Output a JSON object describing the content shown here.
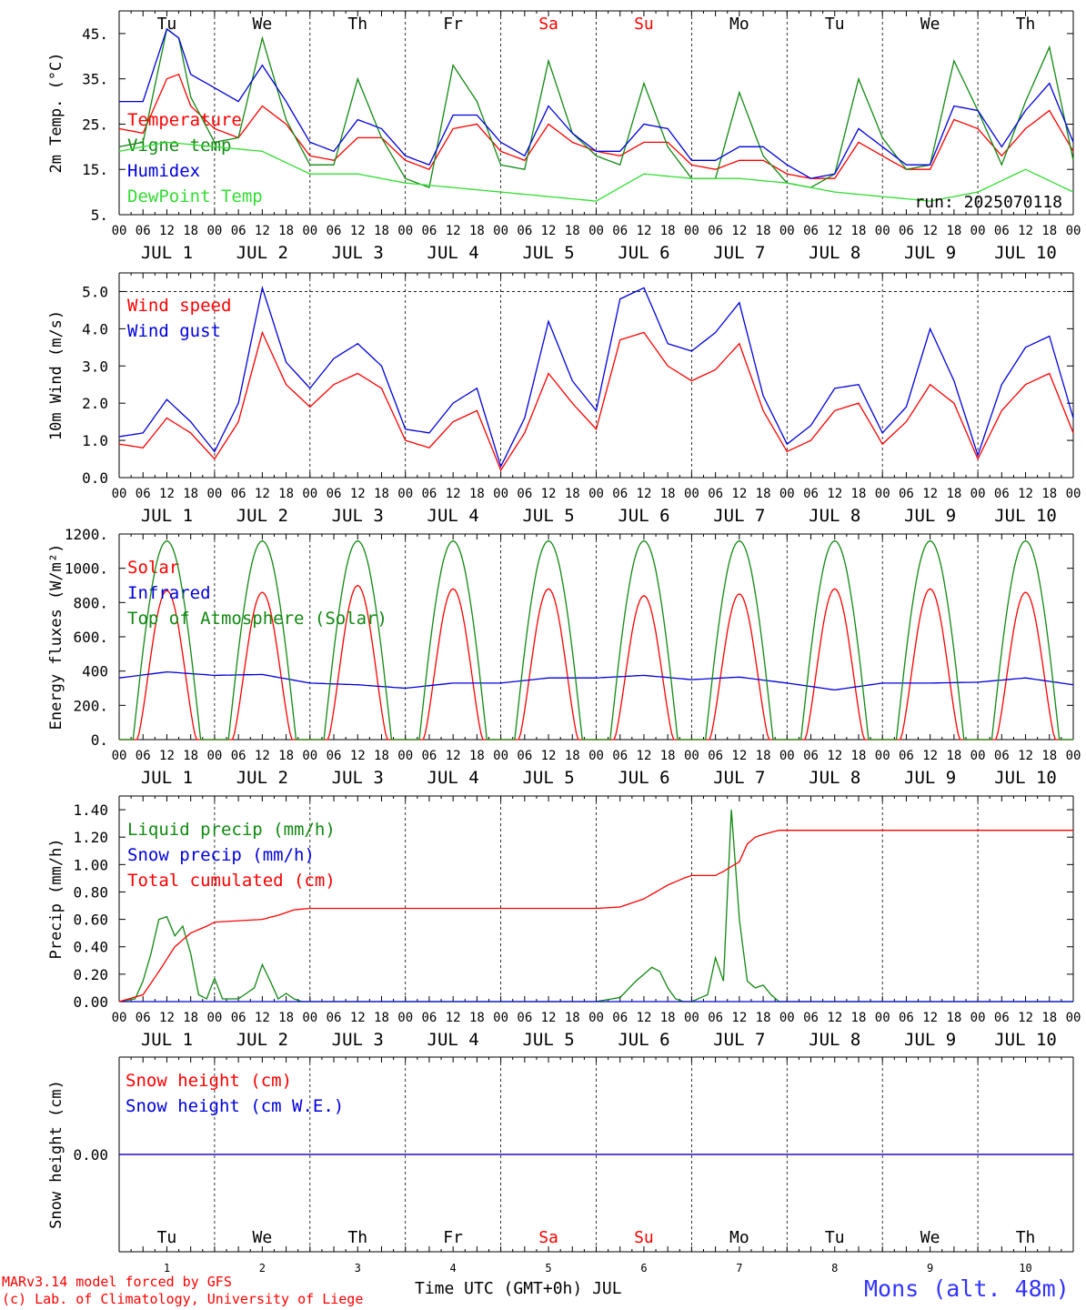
{
  "days": {
    "weekday_labels": [
      "Tu",
      "We",
      "Th",
      "Fr",
      "Sa",
      "Su",
      "Mo",
      "Tu",
      "We",
      "Th"
    ],
    "weekend_flags": [
      false,
      false,
      false,
      false,
      true,
      true,
      false,
      false,
      false,
      false
    ],
    "date_labels": [
      "JUL  1",
      "JUL  2",
      "JUL  3",
      "JUL  4",
      "JUL  5",
      "JUL  6",
      "JUL  7",
      "JUL  8",
      "JUL  9",
      "JUL 10"
    ],
    "day_numbers": [
      "1",
      "2",
      "3",
      "4",
      "5",
      "6",
      "7",
      "8",
      "9",
      "10"
    ],
    "hour_ticks": [
      "00",
      "06",
      "12",
      "18"
    ],
    "final_hour": "00"
  },
  "colors": {
    "weekday": "#000000",
    "weekend": "#ff0000",
    "red": "#ff0000",
    "blue": "#0000dd",
    "green": "#118811",
    "light_green": "#33dd33",
    "station": "#3333ff"
  },
  "footer": {
    "model_line": "MARv3.14 model forced by GFS",
    "copyright_line": "(c) Lab. of Climatology, University of Liege",
    "time_axis_label": "Time UTC (GMT+0h) JUL",
    "station_label": "Mons (alt. 48m)"
  },
  "chart_data": [
    {
      "type": "line",
      "ylabel": "2m Temp. (°C)",
      "ylim": [
        5,
        50
      ],
      "yticks": [
        5,
        15,
        25,
        35,
        45
      ],
      "ytick_labels": [
        "5.",
        "15.",
        "25.",
        "35.",
        "45."
      ],
      "x_units": "hours since 2025-07-01 00 UTC",
      "xlim": [
        0,
        240
      ],
      "run_label": "run: 2025070118",
      "series": [
        {
          "name": "Temperature",
          "color_key": "red",
          "x": [
            0,
            6,
            12,
            15,
            18,
            24,
            30,
            36,
            42,
            48,
            54,
            60,
            66,
            72,
            78,
            84,
            90,
            96,
            102,
            108,
            114,
            120,
            126,
            132,
            138,
            144,
            150,
            156,
            162,
            168,
            174,
            180,
            186,
            192,
            198,
            204,
            210,
            216,
            222,
            228,
            234,
            240
          ],
          "values": [
            24,
            23,
            35,
            36,
            29,
            24,
            22,
            29,
            25,
            18,
            17,
            22,
            22,
            17,
            15,
            24,
            25,
            19,
            17,
            25,
            21,
            19,
            18,
            21,
            21,
            16,
            15,
            17,
            17,
            14,
            13,
            13,
            21,
            18,
            15,
            15,
            26,
            24,
            18,
            24,
            28,
            19
          ]
        },
        {
          "name": "Vigne temp",
          "color_key": "green",
          "x": [
            0,
            6,
            12,
            15,
            18,
            24,
            30,
            36,
            42,
            48,
            54,
            60,
            66,
            72,
            78,
            84,
            90,
            96,
            102,
            108,
            114,
            120,
            126,
            132,
            138,
            144,
            150,
            156,
            162,
            168,
            174,
            180,
            186,
            192,
            198,
            204,
            210,
            216,
            222,
            228,
            234,
            240
          ],
          "values": [
            20,
            21,
            46,
            44,
            31,
            21,
            22,
            44,
            26,
            16,
            16,
            35,
            22,
            13,
            11,
            38,
            30,
            16,
            15,
            39,
            23,
            18,
            16,
            34,
            20,
            13,
            13,
            32,
            18,
            12,
            11,
            14,
            35,
            22,
            15,
            16,
            39,
            28,
            16,
            30,
            42,
            17
          ]
        },
        {
          "name": "Humidex",
          "color_key": "blue",
          "x": [
            0,
            6,
            12,
            15,
            18,
            24,
            30,
            36,
            42,
            48,
            54,
            60,
            66,
            72,
            78,
            84,
            90,
            96,
            102,
            108,
            114,
            120,
            126,
            132,
            138,
            144,
            150,
            156,
            162,
            168,
            174,
            180,
            186,
            192,
            198,
            204,
            210,
            216,
            222,
            228,
            234,
            240
          ],
          "values": [
            30,
            30,
            46,
            44,
            36,
            33,
            30,
            38,
            30,
            21,
            19,
            26,
            24,
            18,
            16,
            27,
            27,
            21,
            18,
            29,
            23,
            19,
            19,
            25,
            24,
            17,
            17,
            20,
            20,
            16,
            13,
            14,
            24,
            20,
            16,
            16,
            29,
            28,
            20,
            28,
            34,
            21
          ]
        },
        {
          "name": "DewPoint Temp",
          "color_key": "light_green",
          "x": [
            0,
            12,
            24,
            36,
            48,
            60,
            72,
            84,
            96,
            108,
            120,
            132,
            144,
            156,
            168,
            180,
            192,
            204,
            216,
            228,
            240
          ],
          "values": [
            19,
            21,
            20,
            19,
            14,
            14,
            12,
            11,
            10,
            9,
            8,
            14,
            13,
            13,
            12,
            10,
            9,
            8,
            10,
            15,
            10
          ]
        }
      ]
    },
    {
      "type": "line",
      "ylabel": "10m Wind (m/s)",
      "ylim": [
        0,
        5.5
      ],
      "yticks": [
        0,
        1,
        2,
        3,
        4,
        5
      ],
      "ytick_labels": [
        "0.0",
        "1.0",
        "2.0",
        "3.0",
        "4.0",
        "5.0"
      ],
      "reference_line": 5.0,
      "x_units": "hours since 2025-07-01 00 UTC",
      "xlim": [
        0,
        240
      ],
      "series": [
        {
          "name": "Wind speed",
          "color_key": "red",
          "x": [
            0,
            6,
            12,
            18,
            24,
            30,
            36,
            42,
            48,
            54,
            60,
            66,
            72,
            78,
            84,
            90,
            96,
            102,
            108,
            114,
            120,
            126,
            132,
            138,
            144,
            150,
            156,
            162,
            168,
            174,
            180,
            186,
            192,
            198,
            204,
            210,
            216,
            222,
            228,
            234,
            240
          ],
          "values": [
            0.9,
            0.8,
            1.6,
            1.2,
            0.5,
            1.5,
            3.9,
            2.5,
            1.9,
            2.5,
            2.8,
            2.4,
            1.0,
            0.8,
            1.5,
            1.8,
            0.2,
            1.2,
            2.8,
            2.0,
            1.3,
            3.7,
            3.9,
            3.0,
            2.6,
            2.9,
            3.6,
            1.8,
            0.7,
            1.0,
            1.8,
            2.0,
            0.9,
            1.5,
            2.5,
            2.0,
            0.5,
            1.8,
            2.5,
            2.8,
            1.2
          ]
        },
        {
          "name": "Wind gust",
          "color_key": "blue",
          "x": [
            0,
            6,
            12,
            18,
            24,
            30,
            36,
            42,
            48,
            54,
            60,
            66,
            72,
            78,
            84,
            90,
            96,
            102,
            108,
            114,
            120,
            126,
            132,
            138,
            144,
            150,
            156,
            162,
            168,
            174,
            180,
            186,
            192,
            198,
            204,
            210,
            216,
            222,
            228,
            234,
            240
          ],
          "values": [
            1.1,
            1.2,
            2.1,
            1.5,
            0.7,
            2.0,
            5.1,
            3.1,
            2.4,
            3.2,
            3.6,
            3.0,
            1.3,
            1.2,
            2.0,
            2.4,
            0.3,
            1.6,
            4.2,
            2.6,
            1.8,
            4.8,
            5.1,
            3.6,
            3.4,
            3.9,
            4.7,
            2.2,
            0.9,
            1.4,
            2.4,
            2.5,
            1.2,
            1.9,
            4.0,
            2.6,
            0.6,
            2.5,
            3.5,
            3.8,
            1.6
          ]
        }
      ]
    },
    {
      "type": "line",
      "ylabel": "Energy fluxes (W/m²)",
      "ylim": [
        0,
        1200
      ],
      "yticks": [
        0,
        200,
        400,
        600,
        800,
        1000,
        1200
      ],
      "ytick_labels": [
        "0.",
        "200.",
        "400",
        "600.",
        "800.",
        "1000.",
        "1200."
      ],
      "x_units": "hours since 2025-07-01 00 UTC",
      "xlim": [
        0,
        240
      ],
      "series": [
        {
          "name": "Solar",
          "color_key": "red",
          "daily_peak": [
            870,
            860,
            900,
            880,
            880,
            840,
            850,
            880,
            880,
            860
          ]
        },
        {
          "name": "Infrared",
          "color_key": "blue",
          "x": [
            0,
            12,
            24,
            36,
            48,
            60,
            72,
            84,
            96,
            108,
            120,
            132,
            144,
            156,
            168,
            180,
            192,
            204,
            216,
            228,
            240
          ],
          "values": [
            360,
            395,
            375,
            380,
            330,
            320,
            300,
            330,
            330,
            360,
            360,
            375,
            350,
            365,
            330,
            290,
            330,
            330,
            335,
            360,
            320
          ]
        },
        {
          "name": "Top of Atmosphere (Solar)",
          "color_key": "green",
          "daily_peak": [
            1160,
            1160,
            1160,
            1160,
            1160,
            1160,
            1160,
            1160,
            1160,
            1160
          ]
        }
      ]
    },
    {
      "type": "line",
      "ylabel": "Precip (mm/h)",
      "ylim": [
        0,
        1.5
      ],
      "yticks": [
        0,
        0.2,
        0.4,
        0.6,
        0.8,
        1.0,
        1.2,
        1.4
      ],
      "ytick_labels": [
        "0.00",
        "0.20",
        "0.40",
        "0.60",
        "0.80",
        "1.00",
        "1.20",
        "1.40"
      ],
      "x_units": "hours since 2025-07-01 00 UTC",
      "xlim": [
        0,
        240
      ],
      "series": [
        {
          "name": "Liquid precip (mm/h)",
          "color_key": "green",
          "x": [
            0,
            4,
            6,
            8,
            10,
            12,
            14,
            16,
            18,
            20,
            22,
            24,
            26,
            30,
            34,
            36,
            38,
            40,
            42,
            44,
            46,
            48,
            50,
            120,
            126,
            130,
            134,
            136,
            138,
            140,
            142,
            144,
            148,
            150,
            152,
            154,
            156,
            158,
            160,
            162,
            164,
            166,
            240
          ],
          "values": [
            0,
            0.02,
            0.15,
            0.35,
            0.6,
            0.62,
            0.48,
            0.55,
            0.35,
            0.05,
            0.02,
            0.17,
            0.02,
            0.02,
            0.1,
            0.27,
            0.15,
            0.02,
            0.06,
            0.02,
            0,
            0,
            0,
            0,
            0.03,
            0.15,
            0.25,
            0.22,
            0.1,
            0.02,
            0,
            0,
            0.05,
            0.32,
            0.15,
            1.4,
            0.6,
            0.15,
            0.1,
            0.12,
            0.05,
            0,
            0
          ]
        },
        {
          "name": "Snow precip (mm/h)",
          "color_key": "blue",
          "x": [
            0,
            240
          ],
          "values": [
            0,
            0
          ]
        },
        {
          "name": "Total cumulated (cm)",
          "color_key": "red",
          "x": [
            0,
            6,
            10,
            14,
            18,
            22,
            24,
            30,
            36,
            40,
            44,
            48,
            60,
            72,
            84,
            96,
            108,
            120,
            126,
            132,
            138,
            142,
            144,
            150,
            152,
            156,
            158,
            160,
            162,
            166,
            240
          ],
          "values": [
            0,
            0.05,
            0.22,
            0.4,
            0.5,
            0.55,
            0.58,
            0.59,
            0.6,
            0.63,
            0.67,
            0.68,
            0.68,
            0.68,
            0.68,
            0.68,
            0.68,
            0.68,
            0.69,
            0.75,
            0.85,
            0.9,
            0.92,
            0.92,
            0.95,
            1.02,
            1.15,
            1.2,
            1.22,
            1.25,
            1.25
          ]
        }
      ]
    },
    {
      "type": "line",
      "ylabel": "Snow height (cm)",
      "ylim": [
        -1,
        1
      ],
      "yticks": [
        0
      ],
      "ytick_labels": [
        "0.00"
      ],
      "x_units": "hours since 2025-07-01 00 UTC",
      "xlim": [
        0,
        240
      ],
      "series": [
        {
          "name": "Snow height (cm)",
          "color_key": "red",
          "x": [
            0,
            240
          ],
          "values": [
            0,
            0
          ]
        },
        {
          "name": "Snow height (cm W.E.)",
          "color_key": "blue",
          "x": [
            0,
            240
          ],
          "values": [
            0,
            0
          ]
        }
      ]
    }
  ]
}
